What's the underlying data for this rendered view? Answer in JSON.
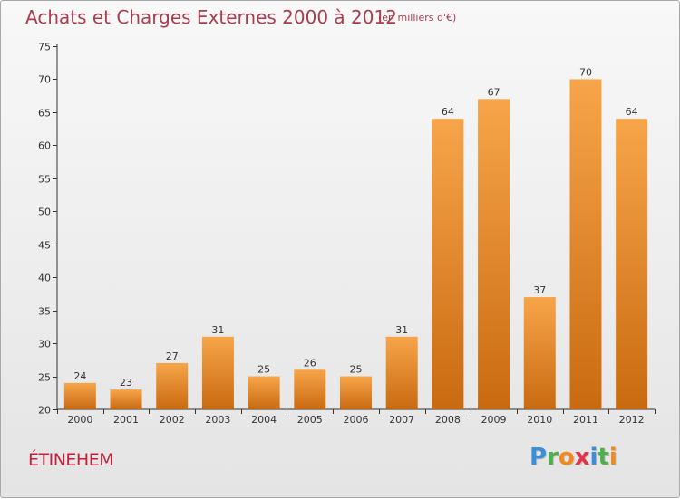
{
  "chart_data": {
    "type": "bar",
    "title": "Achats et Charges Externes 2000 à 2012",
    "subtitle": "(en milliers d'€)",
    "xlabel": "",
    "ylabel": "",
    "categories": [
      "2000",
      "2001",
      "2002",
      "2003",
      "2004",
      "2005",
      "2006",
      "2007",
      "2008",
      "2009",
      "2010",
      "2011",
      "2012"
    ],
    "values": [
      24,
      23,
      27,
      31,
      25,
      26,
      25,
      31,
      64,
      67,
      37,
      70,
      64
    ],
    "ylim": [
      20,
      75
    ],
    "yticks": [
      20,
      25,
      30,
      35,
      40,
      45,
      50,
      55,
      60,
      65,
      70,
      75
    ],
    "grid": false,
    "bar_color_top": "#f7a54a",
    "bar_color_bottom": "#c96a10"
  },
  "footer": {
    "commune": "ÉTINEHEM",
    "logo_letters": [
      {
        "char": "P",
        "color": "#3a8fd6"
      },
      {
        "char": "r",
        "color": "#4db04a"
      },
      {
        "char": "o",
        "color": "#f08a1c"
      },
      {
        "char": "x",
        "color": "#e2334a"
      },
      {
        "char": "i",
        "color": "#3a8fd6"
      },
      {
        "char": "t",
        "color": "#4db04a"
      },
      {
        "char": "i",
        "color": "#f08a1c"
      }
    ]
  },
  "colors": {
    "title": "#ab3c4e",
    "commune": "#c1233f",
    "axis": "#333333"
  }
}
